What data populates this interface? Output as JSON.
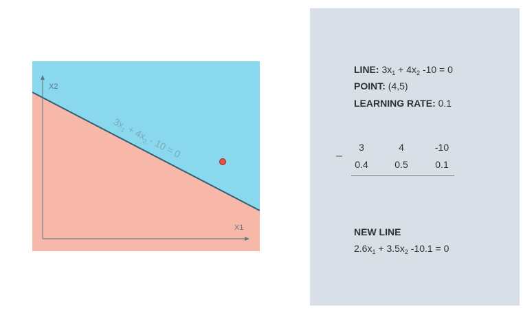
{
  "diagram": {
    "line_label": {
      "a": "3x",
      "s1": "1",
      "b": " + 4x",
      "s2": "2",
      "c": " - 10 = 0"
    },
    "axes": {
      "x_label": "X1",
      "y_label": "X2"
    },
    "colors": {
      "region_above": "#8ad8ed",
      "region_below": "#f8b8a9",
      "point": "#e5533e",
      "line": "#2f5f73"
    }
  },
  "panel": {
    "line_key": "LINE:",
    "line_val": {
      "a": " 3x",
      "s1": "1",
      "b": " + 4x",
      "s2": "2",
      "c": " -10 = 0"
    },
    "point_key": "POINT:",
    "point_val": " (4,5)",
    "rate_key": "LEARNING RATE:",
    "rate_val": " 0.1",
    "minus": "–",
    "row1": [
      "3",
      "4",
      "-10"
    ],
    "row2": [
      "0.4",
      "0.5",
      "0.1"
    ],
    "new_line_title": "NEW LINE",
    "new_line": {
      "a": "2.6x",
      "s1": "1",
      "b": " + 3.5x",
      "s2": "2",
      "c": " -10.1 = 0"
    }
  }
}
